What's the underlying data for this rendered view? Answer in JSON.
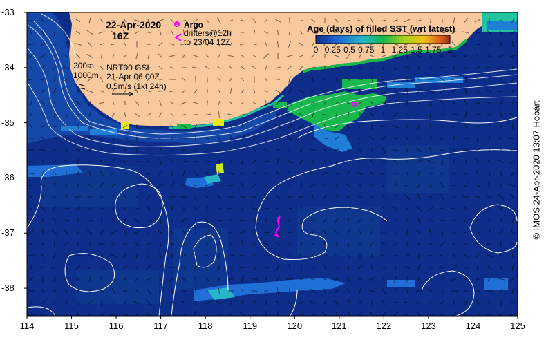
{
  "map": {
    "date": "22-Apr-2020",
    "time": "16Z",
    "x_ticks": [
      "114",
      "115",
      "116",
      "117",
      "118",
      "119",
      "120",
      "121",
      "122",
      "123",
      "124",
      "125"
    ],
    "y_ticks": [
      "-33",
      "-34",
      "-35",
      "-36",
      "-37",
      "-38"
    ],
    "lon_range": [
      114,
      125
    ],
    "lat_range": [
      -38.5,
      -33
    ]
  },
  "legend": {
    "argo_label": "Argo",
    "drifter_line1": "drifters@12h",
    "drifter_line2": "to 23/04 12Z",
    "isobath_200": "200m",
    "isobath_1000": "1000m",
    "gsl_line1": "NRT00 GSL",
    "gsl_line2": "21-Apr 06:00Z",
    "gsl_line3": "0.5m/s (1kt 24h)"
  },
  "colorbar": {
    "title": "Age (days) of filled SST (wrt latest)",
    "ticks": [
      "0",
      "0.25",
      "0.5",
      "0.75",
      "1",
      "1.25",
      "1.5",
      "1.75",
      "2"
    ],
    "range": [
      0,
      2
    ]
  },
  "credit": "© IMOS 24-Apr-2020 13:07 Hobart",
  "colors": {
    "ocean": "#0d2e8a",
    "land": "#f8c99c",
    "age_0": "#0d2e8a",
    "age_0_5": "#1f7fd6",
    "age_1": "#18b84e",
    "age_1_5": "#c8d21e",
    "age_2": "#9c3214",
    "argo": "#ff00ff"
  }
}
